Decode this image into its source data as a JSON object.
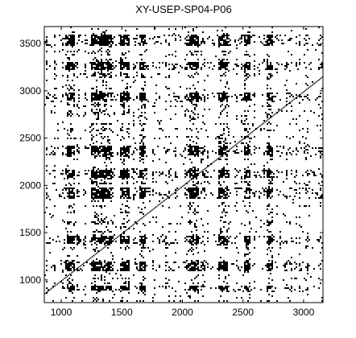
{
  "chart_data": {
    "type": "heatmap",
    "title": "XY-USEP-SP04-P06",
    "xlabel": "",
    "ylabel": "",
    "xlim": [
      860,
      3160
    ],
    "ylim": [
      760,
      3680
    ],
    "x_ticks": [
      1000,
      1500,
      2000,
      2500,
      3000
    ],
    "y_ticks": [
      1000,
      1500,
      2000,
      2500,
      3000,
      3500
    ],
    "x_tick_labels": [
      "1000",
      "1500",
      "2000",
      "2500",
      "3000"
    ],
    "y_tick_labels": [
      "1000",
      "1500",
      "2000",
      "2500",
      "3000",
      "3500"
    ],
    "colormap": [
      "#ffffff",
      "#000000"
    ],
    "description_of_values": "binary recurrence-style dot pattern",
    "dense_x_bands": [
      [
        1040,
        1110
      ],
      [
        1240,
        1420
      ],
      [
        1480,
        1560
      ],
      [
        1640,
        1700
      ],
      [
        2050,
        2140
      ],
      [
        2290,
        2370
      ],
      [
        2510,
        2560
      ],
      [
        2690,
        2750
      ]
    ],
    "dense_y_bands": [
      [
        880,
        940
      ],
      [
        1100,
        1200
      ],
      [
        1380,
        1470
      ],
      [
        1850,
        1980
      ],
      [
        2080,
        2160
      ],
      [
        2320,
        2420
      ],
      [
        2900,
        2980
      ],
      [
        3220,
        3300
      ],
      [
        3480,
        3600
      ]
    ],
    "grid": false
  }
}
